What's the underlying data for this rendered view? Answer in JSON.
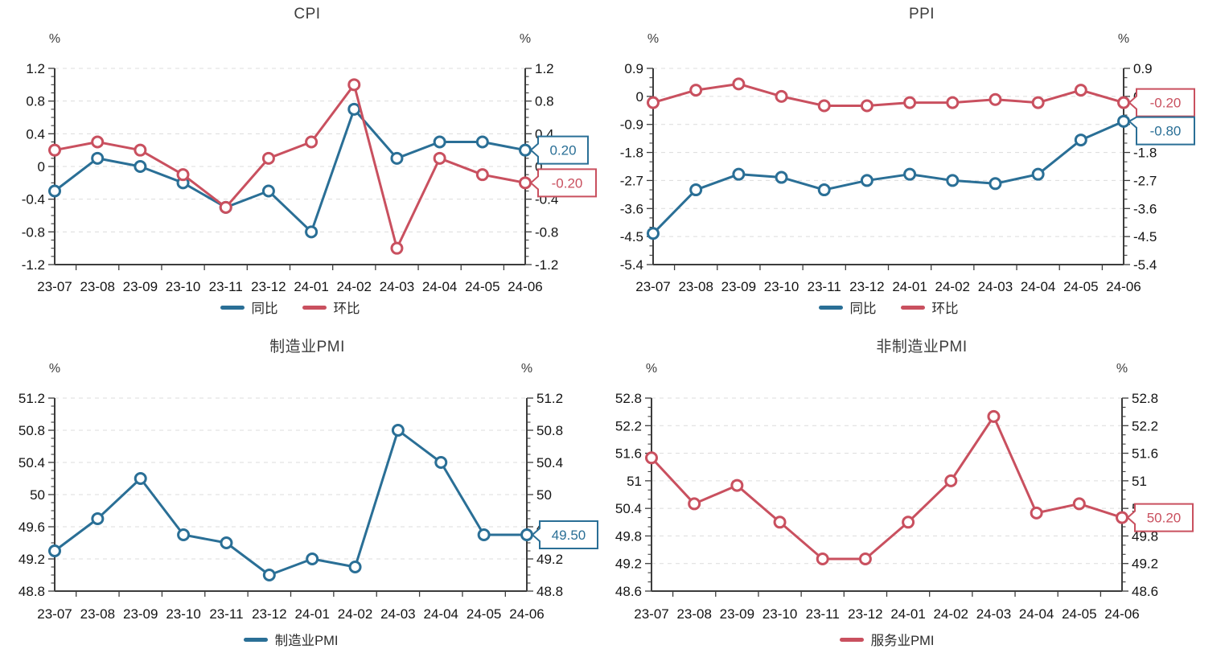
{
  "page": {
    "background": "#ffffff"
  },
  "colors": {
    "blue": "#2a6f96",
    "red": "#c9505f",
    "axis": "#3c3c3c",
    "grid": "#dcdcdc",
    "tick_label": "#141414",
    "title": "#3d3d3d"
  },
  "chart_data": [
    {
      "type": "line",
      "title": "CPI",
      "unit_left": "%",
      "unit_right": "%",
      "categories": [
        "23-07",
        "23-08",
        "23-09",
        "23-10",
        "23-11",
        "23-12",
        "24-01",
        "24-02",
        "24-03",
        "24-04",
        "24-05",
        "24-06"
      ],
      "ylim": [
        -1.2,
        1.2
      ],
      "ytick_step": 0.4,
      "minor_divisions": 4,
      "grid": true,
      "legend_position": "bottom",
      "series": [
        {
          "key": "yoy",
          "name": "同比",
          "color": "#2a6f96",
          "values": [
            -0.3,
            0.1,
            0.0,
            -0.2,
            -0.5,
            -0.3,
            -0.8,
            0.7,
            0.1,
            0.3,
            0.3,
            0.2
          ],
          "end_label": "0.20"
        },
        {
          "key": "mom",
          "name": "环比",
          "color": "#c9505f",
          "values": [
            0.2,
            0.3,
            0.2,
            -0.1,
            -0.5,
            0.1,
            0.3,
            1.0,
            -1.0,
            0.1,
            -0.1,
            -0.2
          ],
          "end_label": "-0.20"
        }
      ]
    },
    {
      "type": "line",
      "title": "PPI",
      "unit_left": "%",
      "unit_right": "%",
      "categories": [
        "23-07",
        "23-08",
        "23-09",
        "23-10",
        "23-11",
        "23-12",
        "24-01",
        "24-02",
        "24-03",
        "24-04",
        "24-05",
        "24-06"
      ],
      "ylim": [
        -5.4,
        0.9
      ],
      "ytick_step": 0.9,
      "minor_divisions": 3,
      "grid": true,
      "legend_position": "bottom",
      "series": [
        {
          "key": "yoy",
          "name": "同比",
          "color": "#2a6f96",
          "values": [
            -4.4,
            -3.0,
            -2.5,
            -2.6,
            -3.0,
            -2.7,
            -2.5,
            -2.7,
            -2.8,
            -2.5,
            -1.4,
            -0.8
          ],
          "end_label": "-0.80"
        },
        {
          "key": "mom",
          "name": "环比",
          "color": "#c9505f",
          "values": [
            -0.2,
            0.2,
            0.4,
            0.0,
            -0.3,
            -0.3,
            -0.2,
            -0.2,
            -0.1,
            -0.2,
            0.2,
            -0.2
          ],
          "end_label": "-0.20"
        }
      ]
    },
    {
      "type": "line",
      "title": "制造业PMI",
      "unit_left": "%",
      "unit_right": "%",
      "categories": [
        "23-07",
        "23-08",
        "23-09",
        "23-10",
        "23-11",
        "23-12",
        "24-01",
        "24-02",
        "24-03",
        "24-04",
        "24-05",
        "24-06"
      ],
      "ylim": [
        48.8,
        51.2
      ],
      "ytick_step": 0.4,
      "minor_divisions": 4,
      "grid": true,
      "legend_position": "bottom",
      "series": [
        {
          "key": "manufacturing-pmi",
          "name": "制造业PMI",
          "color": "#2a6f96",
          "values": [
            49.3,
            49.7,
            50.2,
            49.5,
            49.4,
            49.0,
            49.2,
            49.1,
            50.8,
            50.4,
            49.5,
            49.5
          ],
          "end_label": "49.50"
        }
      ]
    },
    {
      "type": "line",
      "title": "非制造业PMI",
      "unit_left": "%",
      "unit_right": "%",
      "categories": [
        "23-07",
        "23-08",
        "23-09",
        "23-10",
        "23-11",
        "23-12",
        "24-01",
        "24-02",
        "24-03",
        "24-04",
        "24-05",
        "24-06"
      ],
      "ylim": [
        48.6,
        52.8
      ],
      "ytick_step": 0.6,
      "minor_divisions": 3,
      "grid": true,
      "legend_position": "bottom",
      "series": [
        {
          "key": "services-pmi",
          "name": "服务业PMI",
          "color": "#c9505f",
          "values": [
            51.5,
            50.5,
            50.9,
            50.1,
            49.3,
            49.3,
            50.1,
            51.0,
            52.4,
            50.3,
            50.5,
            50.2
          ],
          "end_label": "50.20"
        }
      ]
    }
  ]
}
